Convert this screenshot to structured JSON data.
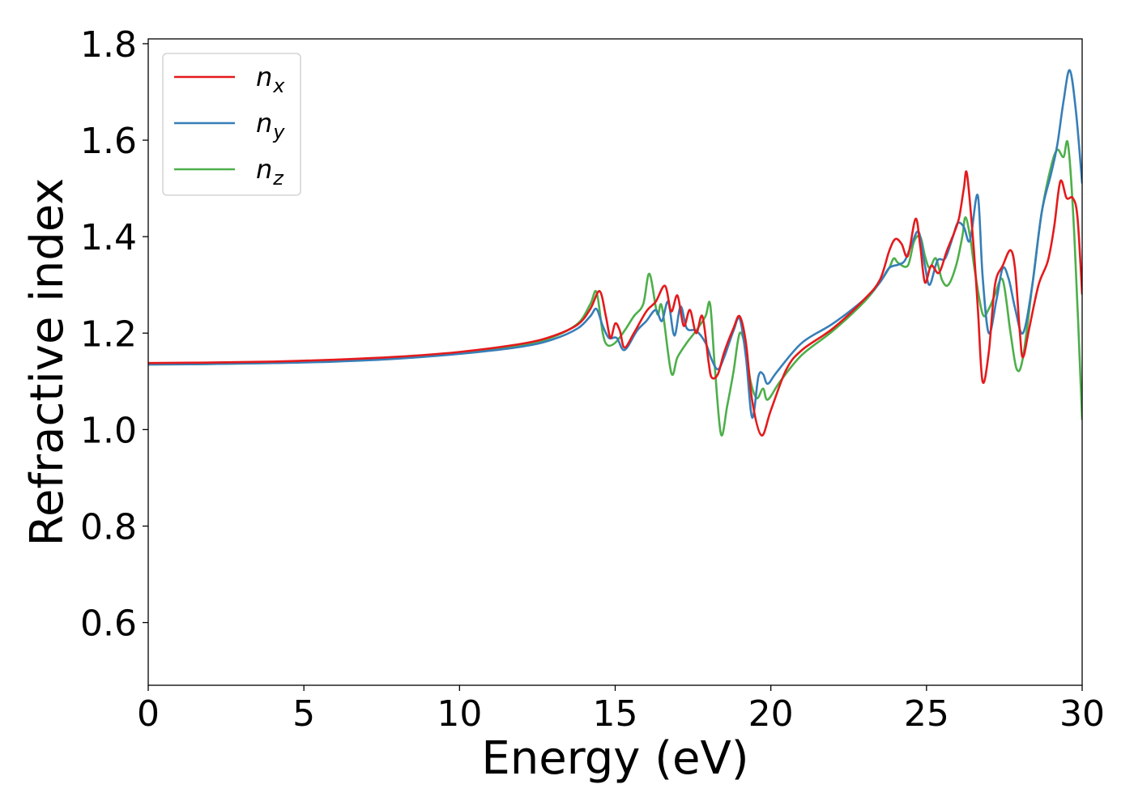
{
  "chart_data": {
    "type": "line",
    "title": "",
    "xlabel": "Energy (eV)",
    "ylabel": "Refractive index",
    "xlim": [
      0,
      30
    ],
    "ylim": [
      0.47,
      1.81
    ],
    "xticks": [
      0,
      5,
      10,
      15,
      20,
      25,
      30
    ],
    "yticks": [
      0.6,
      0.8,
      1.0,
      1.2,
      1.4,
      1.6,
      1.8
    ],
    "grid": false,
    "legend_position": "top-left",
    "series": [
      {
        "name": "n",
        "subscript": "x",
        "color": "#e41a1c",
        "points": [
          [
            0,
            1.138
          ],
          [
            2,
            1.139
          ],
          [
            4,
            1.141
          ],
          [
            6,
            1.145
          ],
          [
            8,
            1.151
          ],
          [
            10,
            1.161
          ],
          [
            12,
            1.178
          ],
          [
            13,
            1.194
          ],
          [
            13.8,
            1.218
          ],
          [
            14.2,
            1.25
          ],
          [
            14.5,
            1.287
          ],
          [
            14.7,
            1.235
          ],
          [
            14.85,
            1.19
          ],
          [
            15.0,
            1.22
          ],
          [
            15.15,
            1.205
          ],
          [
            15.3,
            1.17
          ],
          [
            15.6,
            1.2
          ],
          [
            16.0,
            1.245
          ],
          [
            16.3,
            1.265
          ],
          [
            16.6,
            1.298
          ],
          [
            16.8,
            1.245
          ],
          [
            17.0,
            1.278
          ],
          [
            17.2,
            1.215
          ],
          [
            17.4,
            1.248
          ],
          [
            17.6,
            1.2
          ],
          [
            17.8,
            1.235
          ],
          [
            18.0,
            1.14
          ],
          [
            18.1,
            1.108
          ],
          [
            18.3,
            1.115
          ],
          [
            18.5,
            1.16
          ],
          [
            18.8,
            1.21
          ],
          [
            19.0,
            1.235
          ],
          [
            19.2,
            1.18
          ],
          [
            19.4,
            1.06
          ],
          [
            19.7,
            0.988
          ],
          [
            20.0,
            1.04
          ],
          [
            20.5,
            1.125
          ],
          [
            21.0,
            1.165
          ],
          [
            22.0,
            1.21
          ],
          [
            23.0,
            1.27
          ],
          [
            23.5,
            1.31
          ],
          [
            23.8,
            1.37
          ],
          [
            24.0,
            1.395
          ],
          [
            24.2,
            1.385
          ],
          [
            24.4,
            1.36
          ],
          [
            24.65,
            1.437
          ],
          [
            24.8,
            1.38
          ],
          [
            24.95,
            1.305
          ],
          [
            25.15,
            1.34
          ],
          [
            25.4,
            1.325
          ],
          [
            25.65,
            1.37
          ],
          [
            25.9,
            1.41
          ],
          [
            26.05,
            1.44
          ],
          [
            26.2,
            1.5
          ],
          [
            26.3,
            1.53
          ],
          [
            26.5,
            1.39
          ],
          [
            26.65,
            1.25
          ],
          [
            26.8,
            1.1
          ],
          [
            27.0,
            1.16
          ],
          [
            27.2,
            1.3
          ],
          [
            27.45,
            1.34
          ],
          [
            27.7,
            1.372
          ],
          [
            27.85,
            1.33
          ],
          [
            28.0,
            1.2
          ],
          [
            28.1,
            1.15
          ],
          [
            28.3,
            1.21
          ],
          [
            28.6,
            1.3
          ],
          [
            28.9,
            1.35
          ],
          [
            29.1,
            1.42
          ],
          [
            29.3,
            1.515
          ],
          [
            29.5,
            1.48
          ],
          [
            29.7,
            1.48
          ],
          [
            29.85,
            1.44
          ],
          [
            30.0,
            1.28
          ]
        ]
      },
      {
        "name": "n",
        "subscript": "y",
        "color": "#377eb8",
        "points": [
          [
            0,
            1.135
          ],
          [
            2,
            1.136
          ],
          [
            4,
            1.138
          ],
          [
            6,
            1.141
          ],
          [
            8,
            1.147
          ],
          [
            10,
            1.157
          ],
          [
            12,
            1.172
          ],
          [
            13,
            1.187
          ],
          [
            13.8,
            1.21
          ],
          [
            14.2,
            1.235
          ],
          [
            14.4,
            1.25
          ],
          [
            14.6,
            1.215
          ],
          [
            14.8,
            1.19
          ],
          [
            15.05,
            1.19
          ],
          [
            15.3,
            1.165
          ],
          [
            15.7,
            1.205
          ],
          [
            16.0,
            1.225
          ],
          [
            16.3,
            1.248
          ],
          [
            16.5,
            1.225
          ],
          [
            16.7,
            1.265
          ],
          [
            16.9,
            1.195
          ],
          [
            17.1,
            1.255
          ],
          [
            17.3,
            1.21
          ],
          [
            17.6,
            1.205
          ],
          [
            17.9,
            1.18
          ],
          [
            18.1,
            1.145
          ],
          [
            18.3,
            1.125
          ],
          [
            18.5,
            1.15
          ],
          [
            18.8,
            1.205
          ],
          [
            19.0,
            1.23
          ],
          [
            19.2,
            1.15
          ],
          [
            19.4,
            1.025
          ],
          [
            19.6,
            1.11
          ],
          [
            19.75,
            1.115
          ],
          [
            19.9,
            1.095
          ],
          [
            20.2,
            1.12
          ],
          [
            21.0,
            1.18
          ],
          [
            22.0,
            1.22
          ],
          [
            23.0,
            1.27
          ],
          [
            23.5,
            1.305
          ],
          [
            23.8,
            1.335
          ],
          [
            24.1,
            1.342
          ],
          [
            24.3,
            1.35
          ],
          [
            24.5,
            1.38
          ],
          [
            24.75,
            1.41
          ],
          [
            24.95,
            1.34
          ],
          [
            25.1,
            1.3
          ],
          [
            25.35,
            1.35
          ],
          [
            25.6,
            1.355
          ],
          [
            25.85,
            1.4
          ],
          [
            26.0,
            1.428
          ],
          [
            26.2,
            1.42
          ],
          [
            26.35,
            1.39
          ],
          [
            26.45,
            1.41
          ],
          [
            26.65,
            1.485
          ],
          [
            26.8,
            1.32
          ],
          [
            27.0,
            1.2
          ],
          [
            27.25,
            1.27
          ],
          [
            27.45,
            1.335
          ],
          [
            27.65,
            1.31
          ],
          [
            27.85,
            1.25
          ],
          [
            28.1,
            1.2
          ],
          [
            28.4,
            1.3
          ],
          [
            28.7,
            1.45
          ],
          [
            29.0,
            1.53
          ],
          [
            29.2,
            1.59
          ],
          [
            29.4,
            1.68
          ],
          [
            29.6,
            1.745
          ],
          [
            29.8,
            1.66
          ],
          [
            30.0,
            1.51
          ]
        ]
      },
      {
        "name": "n",
        "subscript": "z",
        "color": "#4daf4a",
        "points": [
          [
            0,
            1.135
          ],
          [
            2,
            1.136
          ],
          [
            4,
            1.138
          ],
          [
            6,
            1.142
          ],
          [
            8,
            1.148
          ],
          [
            10,
            1.158
          ],
          [
            12,
            1.175
          ],
          [
            13,
            1.192
          ],
          [
            13.8,
            1.22
          ],
          [
            14.2,
            1.26
          ],
          [
            14.4,
            1.285
          ],
          [
            14.6,
            1.2
          ],
          [
            14.75,
            1.175
          ],
          [
            15.0,
            1.18
          ],
          [
            15.3,
            1.205
          ],
          [
            15.6,
            1.235
          ],
          [
            15.9,
            1.26
          ],
          [
            16.1,
            1.323
          ],
          [
            16.35,
            1.24
          ],
          [
            16.5,
            1.255
          ],
          [
            16.8,
            1.118
          ],
          [
            17.0,
            1.15
          ],
          [
            17.3,
            1.18
          ],
          [
            17.6,
            1.205
          ],
          [
            17.9,
            1.235
          ],
          [
            18.05,
            1.26
          ],
          [
            18.2,
            1.13
          ],
          [
            18.4,
            0.99
          ],
          [
            18.6,
            1.05
          ],
          [
            18.8,
            1.12
          ],
          [
            19.0,
            1.2
          ],
          [
            19.2,
            1.165
          ],
          [
            19.35,
            1.1
          ],
          [
            19.55,
            1.065
          ],
          [
            19.75,
            1.085
          ],
          [
            19.9,
            1.062
          ],
          [
            20.3,
            1.1
          ],
          [
            21.0,
            1.155
          ],
          [
            22.0,
            1.205
          ],
          [
            23.0,
            1.265
          ],
          [
            23.5,
            1.305
          ],
          [
            23.8,
            1.335
          ],
          [
            23.95,
            1.355
          ],
          [
            24.1,
            1.345
          ],
          [
            24.4,
            1.34
          ],
          [
            24.6,
            1.39
          ],
          [
            24.8,
            1.4
          ],
          [
            24.95,
            1.36
          ],
          [
            25.1,
            1.335
          ],
          [
            25.3,
            1.355
          ],
          [
            25.5,
            1.31
          ],
          [
            25.7,
            1.3
          ],
          [
            25.95,
            1.34
          ],
          [
            26.15,
            1.4
          ],
          [
            26.25,
            1.44
          ],
          [
            26.4,
            1.4
          ],
          [
            26.55,
            1.33
          ],
          [
            26.8,
            1.24
          ],
          [
            27.0,
            1.25
          ],
          [
            27.2,
            1.28
          ],
          [
            27.45,
            1.31
          ],
          [
            27.7,
            1.2
          ],
          [
            27.9,
            1.125
          ],
          [
            28.1,
            1.15
          ],
          [
            28.4,
            1.3
          ],
          [
            28.7,
            1.45
          ],
          [
            29.0,
            1.545
          ],
          [
            29.2,
            1.58
          ],
          [
            29.4,
            1.565
          ],
          [
            29.55,
            1.59
          ],
          [
            29.75,
            1.4
          ],
          [
            30.0,
            1.02
          ]
        ]
      }
    ]
  }
}
